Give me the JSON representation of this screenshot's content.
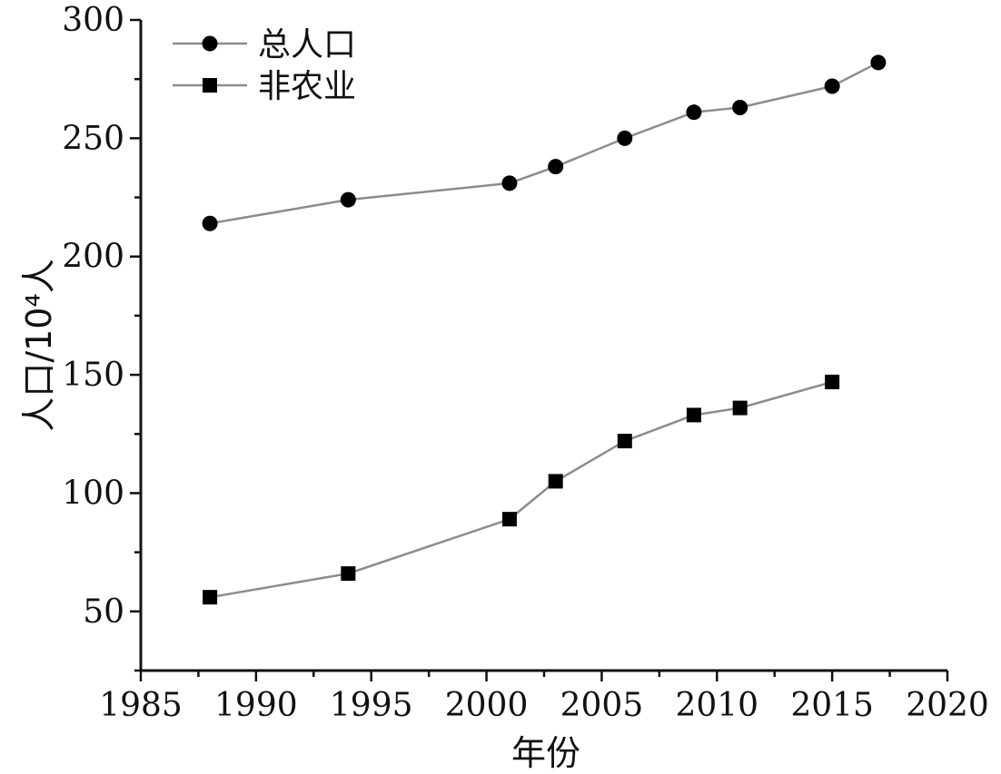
{
  "chart_data": {
    "type": "line",
    "xlabel": "年份",
    "ylabel": "人口/10⁴人",
    "xlim": [
      1985,
      2020
    ],
    "ylim": [
      25,
      300
    ],
    "x_ticks": [
      1985,
      1990,
      1995,
      2000,
      2005,
      2010,
      2015,
      2020
    ],
    "y_ticks": [
      50,
      100,
      150,
      200,
      250,
      300
    ],
    "legend_position": "top-left",
    "series": [
      {
        "name": "总人口",
        "marker": "circle",
        "x": [
          1988,
          1994,
          2001,
          2003,
          2006,
          2009,
          2011,
          2015,
          2017
        ],
        "y": [
          214,
          224,
          231,
          238,
          250,
          261,
          263,
          272,
          282
        ]
      },
      {
        "name": "非农业",
        "marker": "square",
        "x": [
          1988,
          1994,
          2001,
          2003,
          2006,
          2009,
          2011,
          2015
        ],
        "y": [
          56,
          66,
          89,
          105,
          122,
          133,
          136,
          147
        ]
      }
    ]
  }
}
